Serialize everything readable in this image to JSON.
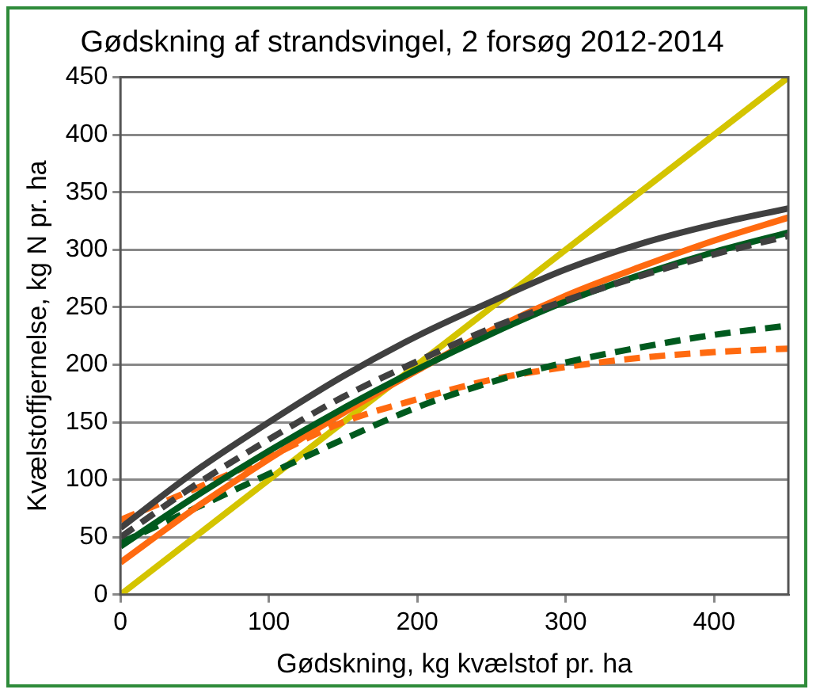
{
  "chart_data": {
    "type": "line",
    "title": "Gødskning af strandsvingel, 2 forsøg 2012-2014",
    "xlabel": "Gødskning, kg kvælstof pr. ha",
    "ylabel": "Kvælstoffjernelse, kg N pr. ha",
    "x": [
      0,
      50,
      100,
      150,
      200,
      250,
      300,
      350,
      400,
      450
    ],
    "xlim": [
      0,
      450
    ],
    "xticks": [
      0,
      100,
      200,
      300,
      400
    ],
    "ylim": [
      0,
      450
    ],
    "yticks": [
      0,
      50,
      100,
      150,
      200,
      250,
      300,
      350,
      400,
      450
    ],
    "grid": "y",
    "legend": false,
    "marker": "none",
    "series": [
      {
        "color": "#404040",
        "line_style": "solid",
        "values": [
          58,
          107,
          150,
          190,
          225,
          255,
          283,
          305,
          322,
          336
        ]
      },
      {
        "color": "#404040",
        "line_style": "dashed",
        "values": [
          50,
          95,
          135,
          172,
          203,
          232,
          256,
          277,
          296,
          312
        ]
      },
      {
        "color": "#005a1e",
        "line_style": "solid",
        "values": [
          42,
          85,
          125,
          162,
          196,
          227,
          255,
          278,
          298,
          315
        ]
      },
      {
        "color": "#ff6a10",
        "line_style": "solid",
        "values": [
          28,
          75,
          118,
          158,
          195,
          230,
          260,
          285,
          308,
          328
        ]
      },
      {
        "color": "#005a1e",
        "line_style": "dashed",
        "values": [
          45,
          75,
          105,
          135,
          163,
          185,
          202,
          215,
          226,
          234
        ]
      },
      {
        "color": "#ff6a10",
        "line_style": "dashed",
        "values": [
          65,
          92,
          120,
          150,
          170,
          187,
          198,
          206,
          211,
          214
        ]
      },
      {
        "color": "#d4c400",
        "line_style": "solid",
        "x": [
          0,
          450
        ],
        "values": [
          0,
          450
        ]
      }
    ]
  }
}
